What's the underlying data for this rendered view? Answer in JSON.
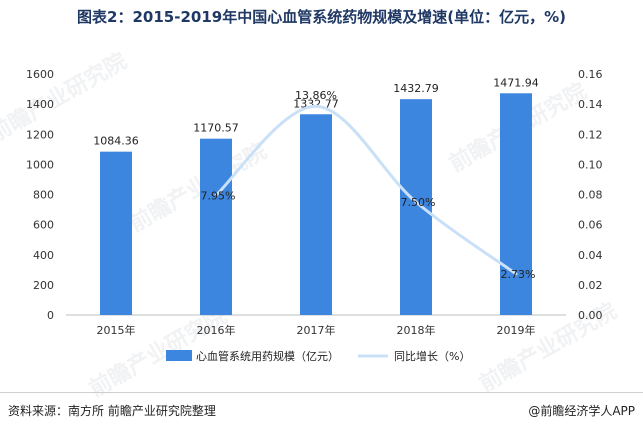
{
  "title": "图表2：2015-2019年中国心血管系统药物规模及增速(单位：亿元，%)",
  "footer": {
    "source": "资料来源：南方所 前瞻产业研究院整理",
    "brand": "@前瞻经济学人APP"
  },
  "watermark": "前瞻产业研究院",
  "colors": {
    "bar": "#3d86e0",
    "line": "#c9e0f7",
    "axis": "#bfbfbf"
  },
  "chart_data": {
    "type": "bar",
    "categories": [
      "2015年",
      "2016年",
      "2017年",
      "2018年",
      "2019年"
    ],
    "series": [
      {
        "name": "心血管系统用药规模（亿元）",
        "type": "bar",
        "axis": "left",
        "values": [
          1084.36,
          1170.57,
          1332.77,
          1432.79,
          1471.94
        ],
        "labels": [
          "1084.36",
          "1170.57",
          "1332.77",
          "1432.79",
          "1471.94"
        ]
      },
      {
        "name": "同比增长（%）",
        "type": "line",
        "axis": "right",
        "values": [
          null,
          0.0795,
          0.1386,
          0.075,
          0.0273
        ],
        "labels": [
          "",
          "7.95%",
          "13.86%",
          "7.50%",
          "2.73%"
        ]
      }
    ],
    "y_left": {
      "min": 0,
      "max": 1600,
      "ticks": [
        0,
        200,
        400,
        600,
        800,
        1000,
        1200,
        1400,
        1600
      ]
    },
    "y_right": {
      "min": 0,
      "max": 0.16,
      "ticks": [
        "0.00",
        "0.02",
        "0.04",
        "0.06",
        "0.08",
        "0.10",
        "0.12",
        "0.14",
        "0.16"
      ]
    },
    "legend_position": "bottom",
    "grid": false
  }
}
